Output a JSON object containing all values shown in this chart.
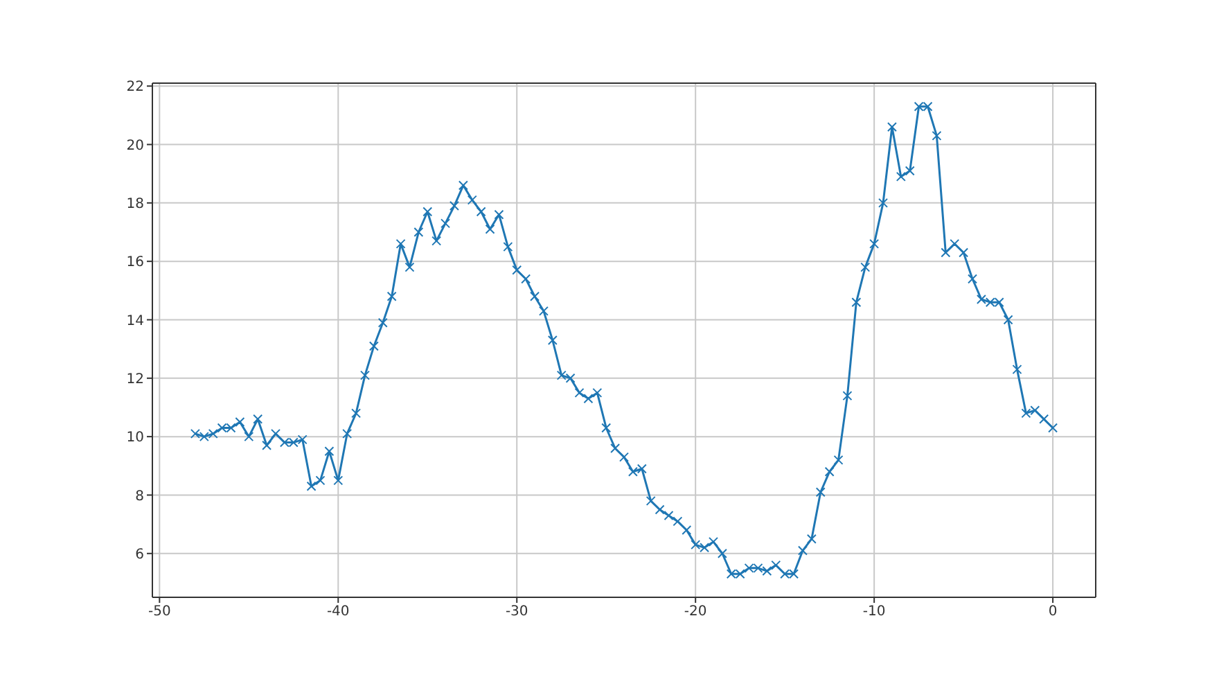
{
  "chart_data": {
    "type": "line",
    "x": [
      -48,
      -47.5,
      -47,
      -46.5,
      -46,
      -45.5,
      -45,
      -44.5,
      -44,
      -43.5,
      -43,
      -42.5,
      -42,
      -41.5,
      -41,
      -40.5,
      -40,
      -39.5,
      -39,
      -38.5,
      -38,
      -37.5,
      -37,
      -36.5,
      -36,
      -35.5,
      -35,
      -34.5,
      -34,
      -33.5,
      -33,
      -32.5,
      -32,
      -31.5,
      -31,
      -30.5,
      -30,
      -29.5,
      -29,
      -28.5,
      -28,
      -27.5,
      -27,
      -26.5,
      -26,
      -25.5,
      -25,
      -24.5,
      -24,
      -23.5,
      -23,
      -22.5,
      -22,
      -21.5,
      -21,
      -20.5,
      -20,
      -19.5,
      -19,
      -18.5,
      -18,
      -17.5,
      -17,
      -16.5,
      -16,
      -15.5,
      -15,
      -14.5,
      -14,
      -13.5,
      -13,
      -12.5,
      -12,
      -11.5,
      -11,
      -10.5,
      -10,
      -9.5,
      -9,
      -8.5,
      -8,
      -7.5,
      -7,
      -6.5,
      -6,
      -5.5,
      -5,
      -4.5,
      -4,
      -3.5,
      -3,
      -2.5,
      -2,
      -1.5,
      -1,
      -0.5,
      0
    ],
    "series": [
      {
        "color": "#1f77b4",
        "values": [
          10.1,
          10.0,
          10.1,
          10.3,
          10.3,
          10.5,
          10.0,
          10.6,
          9.7,
          10.1,
          9.8,
          9.8,
          9.9,
          8.3,
          8.5,
          9.5,
          8.5,
          10.1,
          10.8,
          12.1,
          13.1,
          13.9,
          14.8,
          16.6,
          15.8,
          17.0,
          17.7,
          16.7,
          17.3,
          17.9,
          18.6,
          18.1,
          17.7,
          17.1,
          17.6,
          16.5,
          15.7,
          15.4,
          14.8,
          14.3,
          13.3,
          12.1,
          12.0,
          11.5,
          11.3,
          11.5,
          10.3,
          9.6,
          9.3,
          8.8,
          8.9,
          7.8,
          7.5,
          7.3,
          7.1,
          6.8,
          6.3,
          6.2,
          6.4,
          6.0,
          5.3,
          5.3,
          5.5,
          5.5,
          5.4,
          5.6,
          5.3,
          5.3,
          6.1,
          6.5,
          8.1,
          8.8,
          9.2,
          11.4,
          14.6,
          15.8,
          16.6,
          18.0,
          20.6,
          18.9,
          19.1,
          21.3,
          21.3,
          20.3,
          16.3,
          16.6,
          16.3,
          15.4,
          14.7,
          14.6,
          14.6,
          14.0,
          12.3,
          10.8,
          10.9,
          10.6,
          10.3
        ]
      }
    ],
    "xlim": [
      -50.4,
      2.4
    ],
    "xticks": [
      -50,
      -40,
      -30,
      -20,
      -10,
      0
    ],
    "ylim": [
      4.5,
      22.1
    ],
    "yticks": [
      6,
      8,
      10,
      12,
      14,
      16,
      18,
      20,
      22
    ],
    "grid": true,
    "marker": "cross",
    "line_style": "solid"
  }
}
